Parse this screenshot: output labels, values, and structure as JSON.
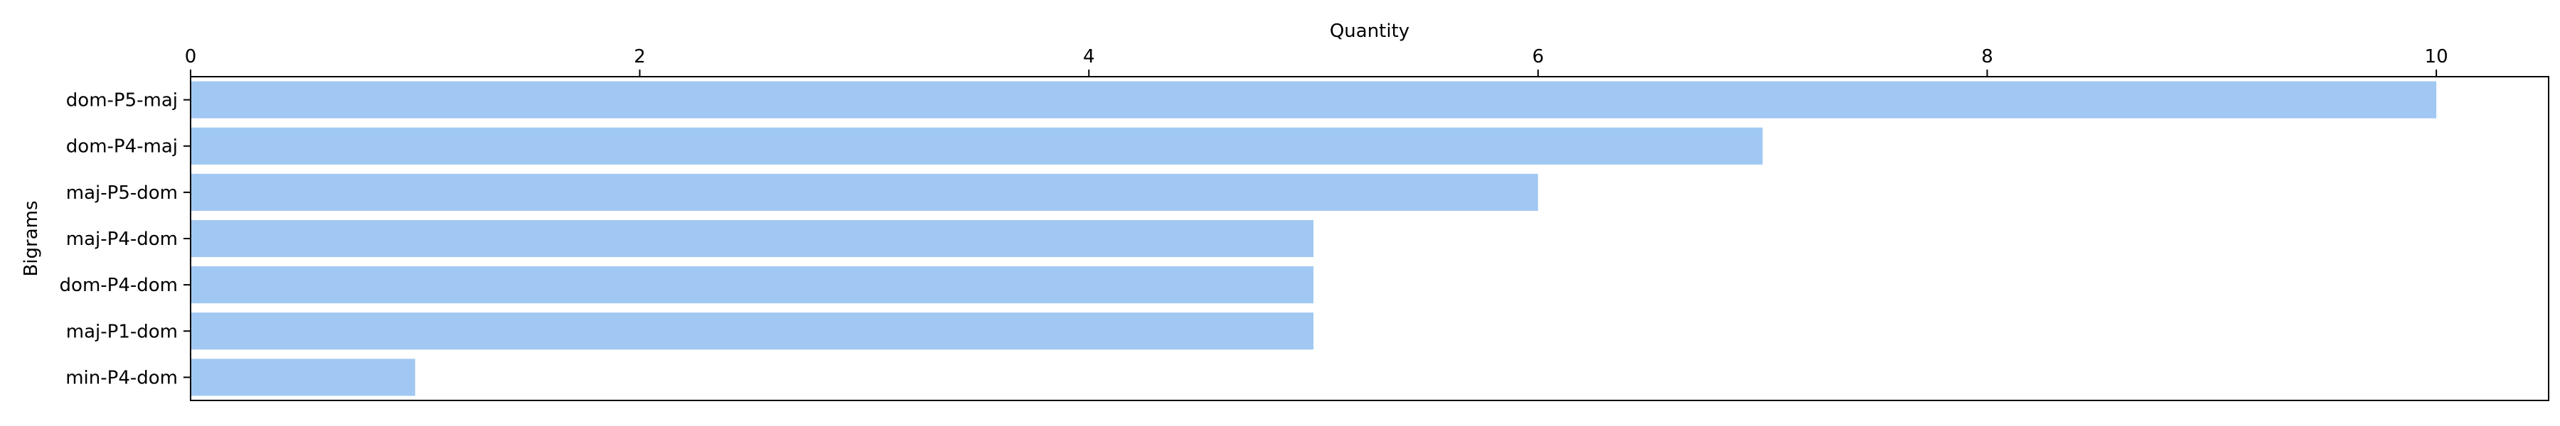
{
  "chart_data": {
    "type": "bar",
    "orientation": "horizontal",
    "xlabel": "Quantity",
    "ylabel": "Bigrams",
    "x_axis_position": "top",
    "xlim": [
      0,
      10.5
    ],
    "xticks": [
      0,
      2,
      4,
      6,
      8,
      10
    ],
    "categories": [
      "dom-P5-maj",
      "dom-P4-maj",
      "maj-P5-dom",
      "maj-P4-dom",
      "dom-P4-dom",
      "maj-P1-dom",
      "min-P4-dom"
    ],
    "values": [
      10,
      7,
      6,
      5,
      5,
      5,
      1
    ],
    "bar_color": "#a1c8f3",
    "grid": false,
    "legend": "none"
  }
}
